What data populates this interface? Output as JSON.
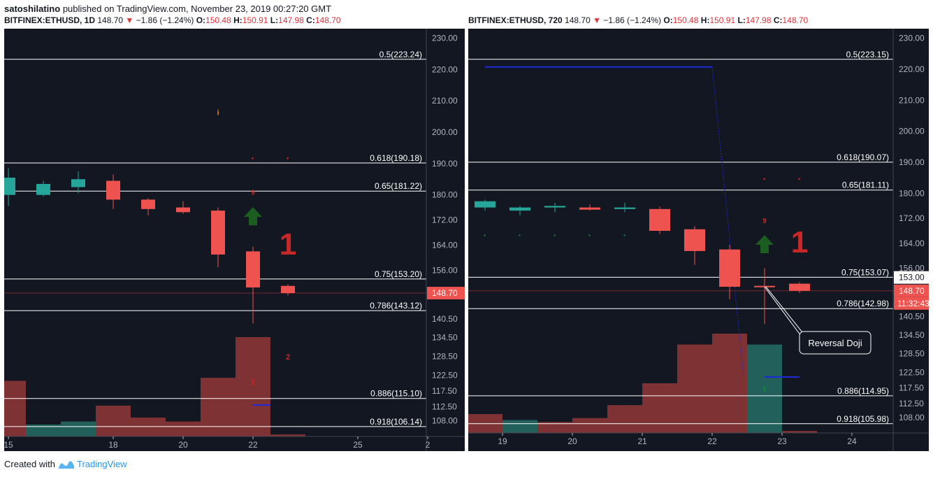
{
  "header": {
    "author": "satoshilatino",
    "publish_text": "published on TradingView.com, November 23, 2019 00:27:20 GMT"
  },
  "footer": {
    "created_with": "Created with",
    "brand": "TradingView"
  },
  "colors": {
    "background": "#131722",
    "up": "#26a69a",
    "down": "#ef5350",
    "vol_up": "#22615b",
    "vol_down": "#7f3234",
    "fib_line": "#ffffff",
    "axis_text": "#b2b5be",
    "td_red": "#c62828",
    "td_green": "#1b5e20"
  },
  "chart_data": [
    {
      "type": "candlestick",
      "symbol": "BITFINEX:ETHUSD, 1D",
      "last": "148.70",
      "change_arrow": "▼",
      "change": "−1.86 (−1.24%)",
      "ohlc": {
        "o": "150.48",
        "h": "150.91",
        "l": "147.98",
        "c": "148.70"
      },
      "ylim": [
        103,
        233
      ],
      "y_ticks": [
        "230.00",
        "220.00",
        "210.00",
        "200.00",
        "190.00",
        "180.00",
        "172.00",
        "164.00",
        "156.00",
        "148.70",
        "140.50",
        "134.50",
        "128.50",
        "122.50",
        "117.50",
        "112.50",
        "108.00"
      ],
      "x_ticks": [
        {
          "label": "15",
          "i": 0
        },
        {
          "label": "18",
          "i": 3
        },
        {
          "label": "20",
          "i": 5
        },
        {
          "label": "22",
          "i": 7
        },
        {
          "label": "25",
          "i": 10
        },
        {
          "label": "2",
          "i": 12
        }
      ],
      "price_label": "148.70",
      "candles": [
        {
          "o": 180.0,
          "h": 188.5,
          "l": 176.5,
          "c": 185.5
        },
        {
          "o": 180.0,
          "h": 184.5,
          "l": 179.5,
          "c": 183.5
        },
        {
          "o": 182.5,
          "h": 187.5,
          "l": 180.5,
          "c": 185.0
        },
        {
          "o": 184.5,
          "h": 186.5,
          "l": 175.5,
          "c": 178.5
        },
        {
          "o": 178.5,
          "h": 179.0,
          "l": 173.5,
          "c": 175.5
        },
        {
          "o": 176.0,
          "h": 178.0,
          "l": 174.0,
          "c": 174.5
        },
        {
          "o": 175.0,
          "h": 176.0,
          "l": 157.0,
          "c": 161.0
        },
        {
          "o": 162.0,
          "h": 163.5,
          "l": 139.0,
          "c": 150.5
        },
        {
          "o": 151.0,
          "h": 151.5,
          "l": 148.0,
          "c": 148.7
        }
      ],
      "volumes": [
        0.56,
        0.12,
        0.15,
        0.31,
        0.19,
        0.15,
        0.59,
        1.0,
        0.02
      ],
      "volume_dirs": [
        "down",
        "up",
        "up",
        "down",
        "down",
        "down",
        "down",
        "down",
        "down"
      ],
      "fib_levels": [
        {
          "label": "0.5(223.24)",
          "price": 223.24
        },
        {
          "label": "0.618(190.18)",
          "price": 190.18
        },
        {
          "label": "0.65(181.22)",
          "price": 181.22
        },
        {
          "label": "0.75(153.20)",
          "price": 153.2
        },
        {
          "label": "0.786(143.12)",
          "price": 143.12
        },
        {
          "label": "0.886(115.10)",
          "price": 115.1
        },
        {
          "label": "0.918(106.14)",
          "price": 106.14
        }
      ],
      "markers": [
        {
          "text": "i",
          "i": 6,
          "price": 205.5,
          "color": "#e67e22",
          "size": 11
        },
        {
          "text": "·",
          "i": 7,
          "price": 190.5,
          "color": "#c62828",
          "size": 16
        },
        {
          "text": "·",
          "i": 8,
          "price": 190.5,
          "color": "#c62828",
          "size": 16
        },
        {
          "text": "9",
          "i": 7,
          "price": 180.0,
          "color": "#c62828",
          "size": 10
        },
        {
          "text": "1",
          "i": 8,
          "price": 161.0,
          "color": "#c62828",
          "size": 44
        },
        {
          "text": "2",
          "i": 8,
          "price": 127.5,
          "color": "#c62828",
          "size": 11
        },
        {
          "text": "1",
          "i": 7,
          "price": 119.5,
          "color": "#c62828",
          "size": 11
        }
      ],
      "arrow": {
        "i": 7,
        "price": 173.0
      },
      "extras": [
        {
          "kind": "hline",
          "i0": 7,
          "i1": 7.5,
          "price": 113.0,
          "color": "#1d2ad6"
        }
      ]
    },
    {
      "type": "candlestick",
      "symbol": "BITFINEX:ETHUSD, 720",
      "last": "148.70",
      "change_arrow": "▼",
      "change": "−1.86 (−1.24%)",
      "ohlc": {
        "o": "150.48",
        "h": "150.91",
        "l": "147.98",
        "c": "148.70"
      },
      "ylim": [
        103,
        233
      ],
      "y_ticks": [
        "230.00",
        "220.00",
        "210.00",
        "200.00",
        "190.00",
        "180.00",
        "172.00",
        "164.00",
        "156.00",
        "140.50",
        "134.50",
        "128.50",
        "122.50",
        "117.50",
        "112.50",
        "108.00"
      ],
      "x_ticks": [
        {
          "label": "19",
          "i": 0.5
        },
        {
          "label": "20",
          "i": 2.5
        },
        {
          "label": "21",
          "i": 4.5
        },
        {
          "label": "22",
          "i": 6.5
        },
        {
          "label": "23",
          "i": 8.5
        },
        {
          "label": "24",
          "i": 10.5
        }
      ],
      "price_label": "148.70",
      "timer_label": "11:32:43",
      "cursor_price": "153.00",
      "candles": [
        {
          "o": 175.5,
          "h": 178.0,
          "l": 174.5,
          "c": 177.5
        },
        {
          "o": 174.5,
          "h": 176.0,
          "l": 173.0,
          "c": 175.5
        },
        {
          "o": 175.5,
          "h": 177.0,
          "l": 174.0,
          "c": 176.0
        },
        {
          "o": 175.5,
          "h": 176.5,
          "l": 174.5,
          "c": 174.8
        },
        {
          "o": 175.0,
          "h": 177.0,
          "l": 174.0,
          "c": 175.5
        },
        {
          "o": 175.0,
          "h": 175.8,
          "l": 167.0,
          "c": 168.0
        },
        {
          "o": 168.5,
          "h": 169.5,
          "l": 157.0,
          "c": 161.5
        },
        {
          "o": 162.0,
          "h": 163.5,
          "l": 146.0,
          "c": 150.0
        },
        {
          "o": 150.3,
          "h": 156.0,
          "l": 138.0,
          "c": 150.0
        },
        {
          "o": 151.0,
          "h": 151.5,
          "l": 148.0,
          "c": 148.7
        }
      ],
      "volumes": [
        0.19,
        0.13,
        0.11,
        0.15,
        0.28,
        0.5,
        0.89,
        1.0,
        0.89,
        0.02
      ],
      "volume_dirs": [
        "down",
        "up",
        "down",
        "down",
        "down",
        "down",
        "down",
        "down",
        "up",
        "down"
      ],
      "fib_levels": [
        {
          "label": "0.5(223.15)",
          "price": 223.15
        },
        {
          "label": "0.618(190.07)",
          "price": 190.07
        },
        {
          "label": "0.65(181.11)",
          "price": 181.11
        },
        {
          "label": "0.75(153.07)",
          "price": 153.07
        },
        {
          "label": "0.786(142.98)",
          "price": 142.98
        },
        {
          "label": "0.886(114.95)",
          "price": 114.95
        },
        {
          "label": "0.918(105.98)",
          "price": 105.98
        }
      ],
      "markers": [
        {
          "text": "·",
          "i": 0,
          "price": 165.5,
          "color": "#1b8a3a",
          "size": 14
        },
        {
          "text": "·",
          "i": 1,
          "price": 165.5,
          "color": "#1b8a3a",
          "size": 14
        },
        {
          "text": "·",
          "i": 2,
          "price": 165.5,
          "color": "#1b8a3a",
          "size": 14
        },
        {
          "text": "·",
          "i": 3,
          "price": 165.5,
          "color": "#1b8a3a",
          "size": 14
        },
        {
          "text": "·",
          "i": 4,
          "price": 165.5,
          "color": "#1b8a3a",
          "size": 14
        },
        {
          "text": "·",
          "i": 8,
          "price": 183.5,
          "color": "#c62828",
          "size": 16
        },
        {
          "text": "·",
          "i": 9,
          "price": 183.5,
          "color": "#c62828",
          "size": 16
        },
        {
          "text": "9",
          "i": 8,
          "price": 170.5,
          "color": "#c62828",
          "size": 10
        },
        {
          "text": "1",
          "i": 9,
          "price": 161.0,
          "color": "#c62828",
          "size": 44
        },
        {
          "text": "1",
          "i": 8,
          "price": 116.5,
          "color": "#1b8a3a",
          "size": 10
        }
      ],
      "arrow": {
        "i": 8,
        "price": 163.5
      },
      "extras": [
        {
          "kind": "hline",
          "i0": 0,
          "i1": 6.5,
          "price": 220.7,
          "color": "#1d2ad6"
        },
        {
          "kind": "vline",
          "i": 6.5,
          "p0": 220.7,
          "p1": 121.5,
          "color": "#1d2ad6"
        },
        {
          "kind": "hline",
          "i0": 8,
          "i1": 9,
          "price": 121.0,
          "color": "#1d2ad6"
        }
      ],
      "annotation": {
        "text": "Reversal Doji",
        "i": 8,
        "price": 150.0
      }
    }
  ]
}
